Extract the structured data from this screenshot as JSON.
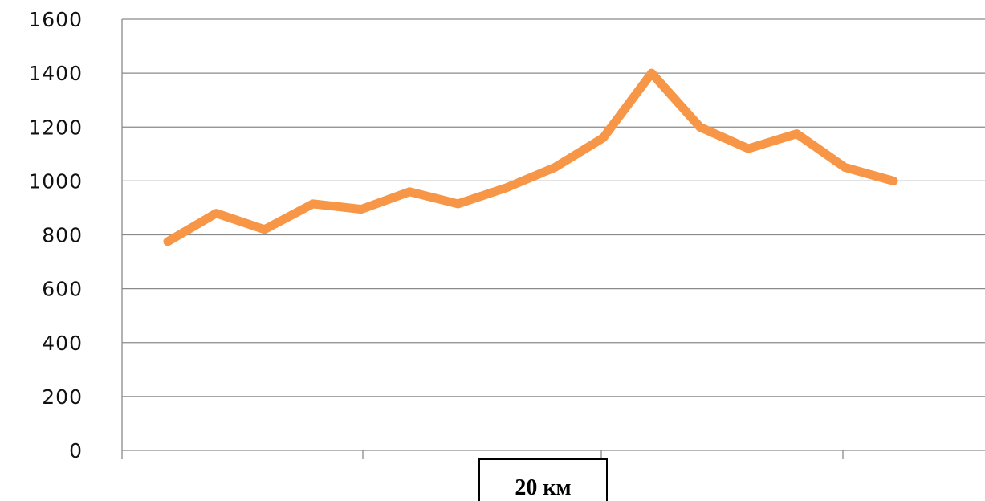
{
  "chart_data": {
    "type": "line",
    "title": "",
    "xlabel": "",
    "ylabel": "",
    "ylim": [
      0,
      1600
    ],
    "yticks": [
      0,
      200,
      400,
      600,
      800,
      1000,
      1200,
      1400,
      1600
    ],
    "grid": true,
    "x": [
      1,
      2,
      3,
      4,
      5,
      6,
      7,
      8,
      9,
      10,
      11,
      12,
      13,
      14,
      15,
      16
    ],
    "series": [
      {
        "values": [
          775,
          880,
          820,
          915,
          895,
          960,
          915,
          975,
          1050,
          1160,
          1400,
          1200,
          1120,
          1175,
          1050,
          1000
        ],
        "color": "#F79646"
      }
    ]
  },
  "scale_label": "20 км"
}
